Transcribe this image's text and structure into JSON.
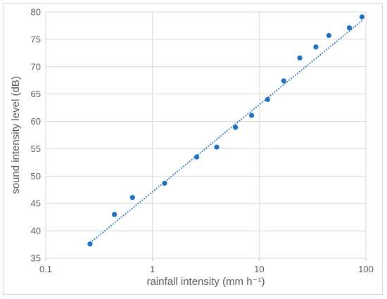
{
  "chart_data": {
    "type": "scatter",
    "xlabel": "rainfall intensity (mm h⁻¹)",
    "ylabel": "sound intensity level (dB)",
    "x_scale": "log",
    "xlim": [
      0.1,
      100
    ],
    "ylim": [
      35,
      80
    ],
    "x_ticks": [
      0.1,
      1,
      10,
      100
    ],
    "x_tick_labels": [
      "0.1",
      "1",
      "10",
      "100"
    ],
    "y_ticks": [
      35,
      40,
      45,
      50,
      55,
      60,
      65,
      70,
      75,
      80
    ],
    "y_tick_labels": [
      "35",
      "40",
      "45",
      "50",
      "55",
      "60",
      "65",
      "70",
      "75",
      "80"
    ],
    "grid": true,
    "legend": "none",
    "series": [
      {
        "color": "#1f6fbf",
        "marker": "circle",
        "points": [
          [
            0.26,
            37.6
          ],
          [
            0.44,
            43.0
          ],
          [
            0.65,
            46.1
          ],
          [
            1.3,
            48.7
          ],
          [
            2.6,
            53.5
          ],
          [
            4.0,
            55.3
          ],
          [
            6.0,
            58.9
          ],
          [
            8.5,
            61.1
          ],
          [
            12.0,
            64.0
          ],
          [
            17.0,
            67.4
          ],
          [
            24.0,
            71.6
          ],
          [
            34.0,
            73.6
          ],
          [
            45.0,
            75.7
          ],
          [
            70.0,
            77.1
          ],
          [
            92.0,
            79.1
          ]
        ],
        "trendline": {
          "type": "logarithmic",
          "style": "dotted",
          "color": "#1f6fbf",
          "x_range": [
            0.26,
            92
          ],
          "endpoints": [
            [
              0.26,
              37.8
            ],
            [
              92,
              78.4
            ]
          ]
        }
      }
    ]
  }
}
